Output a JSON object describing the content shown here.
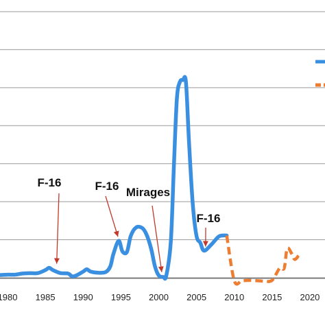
{
  "chart_data": {
    "type": "line",
    "xlim": [
      1979,
      2022
    ],
    "ylim": [
      0,
      7
    ],
    "grid": true,
    "x_ticks": [
      1980,
      1985,
      1990,
      1995,
      2000,
      2005,
      2010,
      2015,
      2020
    ],
    "x_tick_labels": [
      "1980",
      "1985",
      "1990",
      "1995",
      "2000",
      "2005",
      "2010",
      "2015",
      "2020"
    ],
    "legend_placement": "top-right",
    "series": [
      {
        "style": "solid",
        "color": "#3b8fe0",
        "x": [
          1979,
          1980,
          1981,
          1982,
          1983,
          1984,
          1985,
          1985.5,
          1986,
          1987,
          1988,
          1988.5,
          1989,
          1990,
          1990.5,
          1991,
          1992,
          1993,
          1993.6,
          1994,
          1994.7,
          1995.2,
          1995.8,
          1996.3,
          1997,
          1997.8,
          1998.4,
          1999,
          1999.5,
          2000,
          2000.6,
          2001,
          2001.6,
          2002,
          2002.4,
          2002.8,
          2003.2,
          2003.6,
          2004,
          2004.5,
          2005,
          2005.5,
          2006,
          2007,
          2008,
          2009
        ],
        "y": [
          0.07,
          0.08,
          0.08,
          0.11,
          0.12,
          0.12,
          0.2,
          0.26,
          0.2,
          0.12,
          0.11,
          0.04,
          0.05,
          0.16,
          0.22,
          0.16,
          0.13,
          0.15,
          0.3,
          0.62,
          0.97,
          0.69,
          0.68,
          1.1,
          1.32,
          1.31,
          1.13,
          0.76,
          0.3,
          0.06,
          0.02,
          0.05,
          0.95,
          2.9,
          4.7,
          5.15,
          5.2,
          5.15,
          3.6,
          1.95,
          1.1,
          0.92,
          0.71,
          0.88,
          1.09,
          1.11
        ]
      },
      {
        "style": "dashed",
        "color": "#ed7d31",
        "x": [
          2009,
          2010,
          2011,
          2012,
          2013,
          2014,
          2015,
          2016,
          2016.6,
          2017,
          2017.6,
          2018,
          2018.5
        ],
        "y": [
          1.11,
          -0.08,
          -0.08,
          -0.07,
          -0.08,
          -0.09,
          -0.07,
          0.25,
          0.25,
          0.77,
          0.63,
          0.48,
          0.58
        ]
      }
    ],
    "annotations": [
      {
        "text": "F-16",
        "arrow_x": 1986.5,
        "arrow_y": 0.26
      },
      {
        "text": "F-16",
        "arrow_x": 1994.6,
        "arrow_y": 0.97
      },
      {
        "text": "Mirages",
        "arrow_x": 2000.4,
        "arrow_y": 0.04
      },
      {
        "text": "F-16",
        "arrow_x": 2006.2,
        "arrow_y": 0.71
      }
    ]
  }
}
